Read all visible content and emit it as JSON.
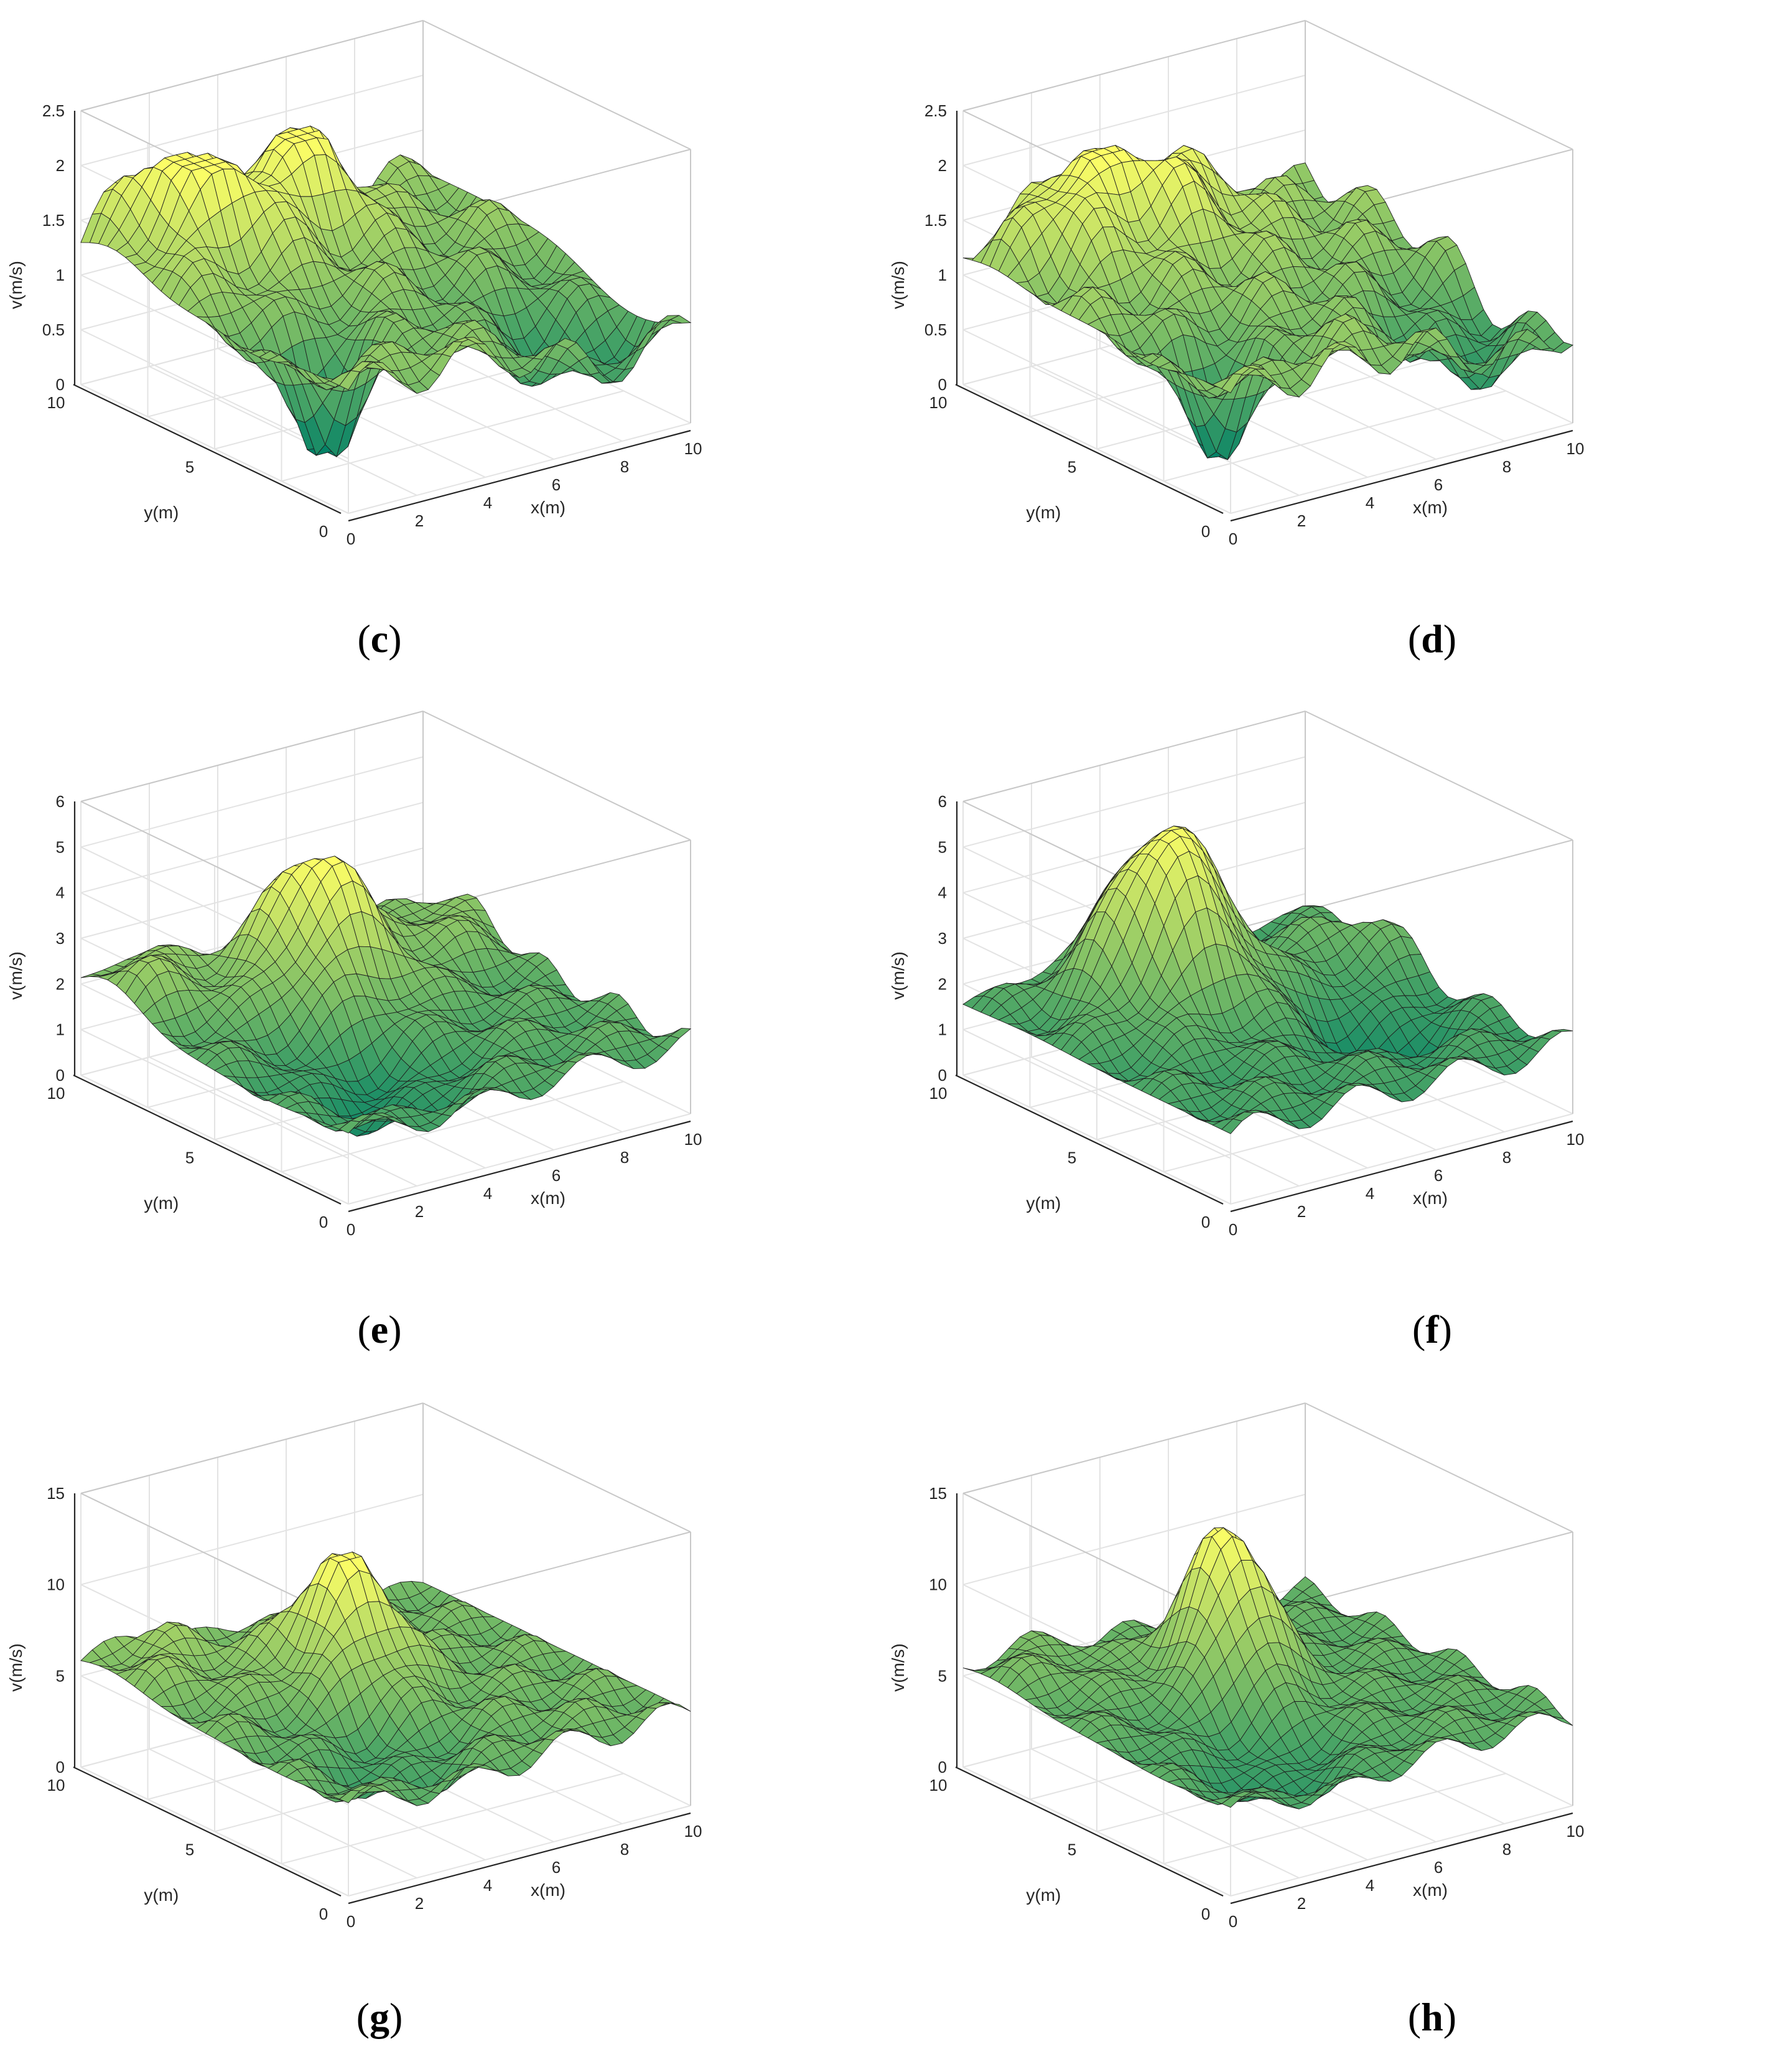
{
  "figure": {
    "captions": [
      {
        "open": "(",
        "letter": "c",
        "close": ")"
      },
      {
        "open": "(",
        "letter": "d",
        "close": ")"
      },
      {
        "open": "(",
        "letter": "e",
        "close": ")"
      },
      {
        "open": "(",
        "letter": "f",
        "close": ")"
      },
      {
        "open": "(",
        "letter": "g",
        "close": ")"
      },
      {
        "open": "(",
        "letter": "h",
        "close": ")"
      }
    ]
  },
  "chart_data": [
    {
      "type": "surface",
      "panel": "c",
      "xlabel": "x(m)",
      "ylabel": "y(m)",
      "zlabel": "v(m/s)",
      "xlim": [
        0,
        10
      ],
      "ylim": [
        0,
        10
      ],
      "zlim": [
        0,
        2.5
      ],
      "xticks": [
        "0",
        "2",
        "4",
        "6",
        "8",
        "10"
      ],
      "yticks": [
        "0",
        "5",
        "10"
      ],
      "zticks": [
        "0",
        "0.5",
        "1",
        "1.5",
        "2",
        "2.5"
      ],
      "grid": true,
      "colormap": "summer",
      "surface_max": 2.05,
      "surface_min": 0.0,
      "features": "multiple peaks near 1.5-2 along far edges; dip to ~0 near x=2, y=3"
    },
    {
      "type": "surface",
      "panel": "d",
      "xlabel": "x(m)",
      "ylabel": "y(m)",
      "zlabel": "v(m/s)",
      "xlim": [
        0,
        10
      ],
      "ylim": [
        0,
        10
      ],
      "zlim": [
        0,
        2.5
      ],
      "xticks": [
        "0",
        "2",
        "4",
        "6",
        "8",
        "10"
      ],
      "yticks": [
        "0",
        "5",
        "10"
      ],
      "zticks": [
        "0",
        "0.5",
        "1",
        "1.5",
        "2",
        "2.5"
      ],
      "grid": true,
      "colormap": "summer",
      "surface_max": 2.0,
      "surface_min": 0.0,
      "features": "ridge of peaks around 1.5-2 across the back; dip near x=2, y=3"
    },
    {
      "type": "surface",
      "panel": "e",
      "xlabel": "x(m)",
      "ylabel": "y(m)",
      "zlabel": "v(m/s)",
      "xlim": [
        0,
        10
      ],
      "ylim": [
        0,
        10
      ],
      "zlim": [
        0,
        6
      ],
      "xticks": [
        "0",
        "2",
        "4",
        "6",
        "8",
        "10"
      ],
      "yticks": [
        "0",
        "5",
        "10"
      ],
      "zticks": [
        "0",
        "1",
        "2",
        "3",
        "4",
        "5",
        "6"
      ],
      "grid": true,
      "colormap": "summer",
      "surface_max": 4.5,
      "surface_min": 0.0,
      "features": "central peak ~4.5 near x=5, y=7; ring of ~3 around the edges"
    },
    {
      "type": "surface",
      "panel": "f",
      "xlabel": "x(m)",
      "ylabel": "y(m)",
      "zlabel": "v(m/s)",
      "xlim": [
        0,
        10
      ],
      "ylim": [
        0,
        10
      ],
      "zlim": [
        0,
        6
      ],
      "xticks": [
        "0",
        "2",
        "4",
        "6",
        "8",
        "10"
      ],
      "yticks": [
        "0",
        "5",
        "10"
      ],
      "zticks": [
        "0",
        "1",
        "2",
        "3",
        "4",
        "5",
        "6"
      ],
      "grid": true,
      "colormap": "summer",
      "surface_max": 5.5,
      "surface_min": 0.0,
      "features": "dominant central peak ~5.5 near x=4, y=7"
    },
    {
      "type": "surface",
      "panel": "g",
      "xlabel": "x(m)",
      "ylabel": "y(m)",
      "zlabel": "v(m/s)",
      "xlim": [
        0,
        10
      ],
      "ylim": [
        0,
        10
      ],
      "zlim": [
        0,
        15
      ],
      "xticks": [
        "0",
        "2",
        "4",
        "6",
        "8",
        "10"
      ],
      "yticks": [
        "0",
        "5",
        "10"
      ],
      "zticks": [
        "0",
        "5",
        "10",
        "15"
      ],
      "grid": true,
      "colormap": "summer",
      "surface_max": 11.5,
      "surface_min": 0.0,
      "features": "central peak ~11.5 near x=5, y=6; edges around 7-8"
    },
    {
      "type": "surface",
      "panel": "h",
      "xlabel": "x(m)",
      "ylabel": "y(m)",
      "zlabel": "v(m/s)",
      "xlim": [
        0,
        10
      ],
      "ylim": [
        0,
        10
      ],
      "zlim": [
        0,
        15
      ],
      "xticks": [
        "0",
        "2",
        "4",
        "6",
        "8",
        "10"
      ],
      "yticks": [
        "0",
        "5",
        "10"
      ],
      "zticks": [
        "0",
        "5",
        "10",
        "15"
      ],
      "grid": true,
      "colormap": "summer",
      "surface_max": 13.0,
      "surface_min": 0.0,
      "features": "sharp central peak ~13 near x=5, y=6; edges around 6-7"
    }
  ]
}
